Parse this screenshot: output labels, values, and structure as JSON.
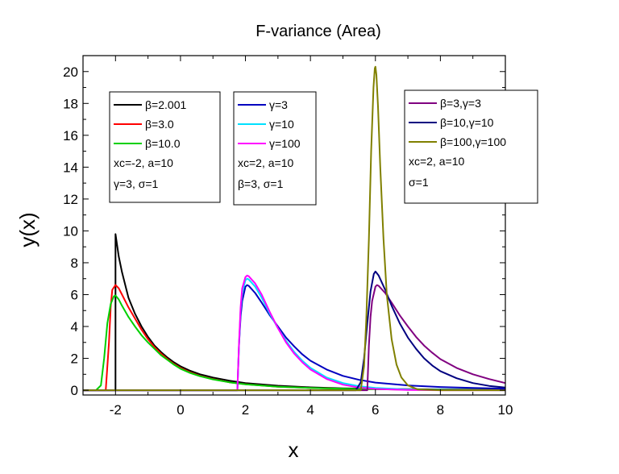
{
  "chart_data": {
    "type": "line",
    "title": "F-variance (Area)",
    "xlabel": "x",
    "ylabel": "y(x)",
    "xlim": [
      -3,
      10
    ],
    "ylim": [
      -0.3,
      21
    ],
    "xticks": [
      "-2",
      "0",
      "2",
      "4",
      "6",
      "8",
      "10"
    ],
    "yticks": [
      "0",
      "2",
      "4",
      "6",
      "8",
      "10",
      "12",
      "14",
      "16",
      "18",
      "20"
    ],
    "series": [
      {
        "name": "β=2.001",
        "color": "#000000",
        "points": [
          [
            -3,
            0
          ],
          [
            -2.05,
            0
          ],
          [
            -2,
            0
          ],
          [
            -2,
            9.8
          ],
          [
            -1.9,
            8.4
          ],
          [
            -1.8,
            7.4
          ],
          [
            -1.6,
            5.8
          ],
          [
            -1.4,
            4.8
          ],
          [
            -1.2,
            4.0
          ],
          [
            -1,
            3.35
          ],
          [
            -0.8,
            2.8
          ],
          [
            -0.6,
            2.4
          ],
          [
            -0.4,
            2.05
          ],
          [
            -0.2,
            1.75
          ],
          [
            0,
            1.5
          ],
          [
            0.3,
            1.22
          ],
          [
            0.6,
            1.0
          ],
          [
            1,
            0.8
          ],
          [
            1.5,
            0.6
          ],
          [
            2,
            0.45
          ],
          [
            3,
            0.28
          ],
          [
            4,
            0.18
          ],
          [
            5,
            0.12
          ],
          [
            6,
            0.09
          ],
          [
            7,
            0.07
          ],
          [
            8,
            0.05
          ],
          [
            9,
            0.04
          ],
          [
            10,
            0.03
          ]
        ]
      },
      {
        "name": "β=3.0",
        "color": "#ff0000",
        "points": [
          [
            -3,
            0
          ],
          [
            -2.3,
            0
          ],
          [
            -2.2,
            3.0
          ],
          [
            -2.15,
            5.2
          ],
          [
            -2.1,
            6.3
          ],
          [
            -2.0,
            6.6
          ],
          [
            -1.9,
            6.4
          ],
          [
            -1.8,
            6.0
          ],
          [
            -1.6,
            5.2
          ],
          [
            -1.4,
            4.5
          ],
          [
            -1.2,
            3.8
          ],
          [
            -1,
            3.2
          ],
          [
            -0.8,
            2.7
          ],
          [
            -0.6,
            2.3
          ],
          [
            -0.4,
            1.95
          ],
          [
            -0.2,
            1.65
          ],
          [
            0,
            1.4
          ],
          [
            0.3,
            1.12
          ],
          [
            0.6,
            0.9
          ],
          [
            1,
            0.7
          ],
          [
            1.5,
            0.5
          ],
          [
            2,
            0.38
          ],
          [
            3,
            0.22
          ],
          [
            4,
            0.14
          ],
          [
            5,
            0.09
          ],
          [
            6,
            0.06
          ],
          [
            7,
            0.04
          ],
          [
            8,
            0.03
          ],
          [
            9,
            0.02
          ],
          [
            10,
            0.02
          ]
        ]
      },
      {
        "name": "β=10.0",
        "color": "#00d000",
        "points": [
          [
            -3,
            0
          ],
          [
            -2.6,
            0
          ],
          [
            -2.45,
            0.3
          ],
          [
            -2.35,
            2.0
          ],
          [
            -2.25,
            4.2
          ],
          [
            -2.15,
            5.4
          ],
          [
            -2.05,
            5.9
          ],
          [
            -2.0,
            5.95
          ],
          [
            -1.9,
            5.7
          ],
          [
            -1.8,
            5.3
          ],
          [
            -1.6,
            4.6
          ],
          [
            -1.4,
            4.0
          ],
          [
            -1.2,
            3.45
          ],
          [
            -1,
            3.0
          ],
          [
            -0.8,
            2.6
          ],
          [
            -0.6,
            2.2
          ],
          [
            -0.4,
            1.9
          ],
          [
            -0.2,
            1.6
          ],
          [
            0,
            1.35
          ],
          [
            0.3,
            1.08
          ],
          [
            0.6,
            0.88
          ],
          [
            1,
            0.68
          ],
          [
            1.5,
            0.5
          ],
          [
            2,
            0.37
          ],
          [
            3,
            0.22
          ],
          [
            4,
            0.14
          ],
          [
            5,
            0.09
          ],
          [
            6,
            0.06
          ],
          [
            7,
            0.04
          ],
          [
            8,
            0.03
          ],
          [
            9,
            0.02
          ],
          [
            10,
            0.02
          ]
        ]
      },
      {
        "name": "γ=3",
        "color": "#0000c0",
        "points": [
          [
            -3,
            0
          ],
          [
            1.75,
            0
          ],
          [
            1.8,
            2.8
          ],
          [
            1.85,
            4.6
          ],
          [
            1.9,
            5.6
          ],
          [
            2.0,
            6.5
          ],
          [
            2.05,
            6.6
          ],
          [
            2.1,
            6.55
          ],
          [
            2.3,
            6.1
          ],
          [
            2.5,
            5.5
          ],
          [
            2.75,
            4.7
          ],
          [
            3,
            4.0
          ],
          [
            3.25,
            3.3
          ],
          [
            3.5,
            2.75
          ],
          [
            3.75,
            2.25
          ],
          [
            4,
            1.85
          ],
          [
            4.5,
            1.3
          ],
          [
            5,
            0.9
          ],
          [
            5.5,
            0.65
          ],
          [
            6,
            0.48
          ],
          [
            7,
            0.3
          ],
          [
            8,
            0.2
          ],
          [
            9,
            0.14
          ],
          [
            10,
            0.1
          ]
        ]
      },
      {
        "name": "γ=10",
        "color": "#00e0ff",
        "points": [
          [
            -3,
            0
          ],
          [
            1.75,
            0
          ],
          [
            1.8,
            2.8
          ],
          [
            1.85,
            5.0
          ],
          [
            1.9,
            6.1
          ],
          [
            2.0,
            6.9
          ],
          [
            2.05,
            7.0
          ],
          [
            2.1,
            6.95
          ],
          [
            2.3,
            6.5
          ],
          [
            2.5,
            5.8
          ],
          [
            2.75,
            4.8
          ],
          [
            3,
            3.9
          ],
          [
            3.25,
            3.1
          ],
          [
            3.5,
            2.4
          ],
          [
            3.75,
            1.85
          ],
          [
            4,
            1.4
          ],
          [
            4.5,
            0.8
          ],
          [
            5,
            0.45
          ],
          [
            5.5,
            0.25
          ],
          [
            6,
            0.14
          ],
          [
            7,
            0.05
          ],
          [
            8,
            0.02
          ],
          [
            9,
            0.01
          ],
          [
            10,
            0
          ]
        ]
      },
      {
        "name": "γ=100",
        "color": "#ff00ff",
        "points": [
          [
            -3,
            0
          ],
          [
            1.75,
            0
          ],
          [
            1.8,
            2.9
          ],
          [
            1.85,
            5.2
          ],
          [
            1.9,
            6.4
          ],
          [
            2.0,
            7.1
          ],
          [
            2.05,
            7.2
          ],
          [
            2.1,
            7.15
          ],
          [
            2.3,
            6.7
          ],
          [
            2.5,
            6.0
          ],
          [
            2.75,
            4.9
          ],
          [
            3,
            3.9
          ],
          [
            3.25,
            3.0
          ],
          [
            3.5,
            2.3
          ],
          [
            3.75,
            1.75
          ],
          [
            4,
            1.3
          ],
          [
            4.5,
            0.7
          ],
          [
            5,
            0.35
          ],
          [
            5.5,
            0.17
          ],
          [
            6,
            0.08
          ],
          [
            7,
            0.02
          ],
          [
            8,
            0
          ],
          [
            9,
            0
          ],
          [
            10,
            0
          ]
        ]
      },
      {
        "name": "β=3,γ=3",
        "color": "#800080",
        "points": [
          [
            -3,
            0
          ],
          [
            5.75,
            0
          ],
          [
            5.8,
            2.8
          ],
          [
            5.85,
            4.6
          ],
          [
            5.9,
            5.6
          ],
          [
            6.0,
            6.5
          ],
          [
            6.05,
            6.6
          ],
          [
            6.1,
            6.55
          ],
          [
            6.3,
            6.1
          ],
          [
            6.5,
            5.5
          ],
          [
            6.75,
            4.7
          ],
          [
            7,
            4.0
          ],
          [
            7.25,
            3.35
          ],
          [
            7.5,
            2.8
          ],
          [
            7.75,
            2.35
          ],
          [
            8,
            1.95
          ],
          [
            8.5,
            1.4
          ],
          [
            9,
            1.0
          ],
          [
            9.5,
            0.7
          ],
          [
            10,
            0.45
          ]
        ]
      },
      {
        "name": "β=10,γ=10",
        "color": "#000080",
        "points": [
          [
            -3,
            0
          ],
          [
            5.4,
            0
          ],
          [
            5.55,
            0.5
          ],
          [
            5.65,
            2.0
          ],
          [
            5.75,
            4.2
          ],
          [
            5.85,
            6.2
          ],
          [
            5.95,
            7.3
          ],
          [
            6.0,
            7.45
          ],
          [
            6.1,
            7.2
          ],
          [
            6.3,
            6.3
          ],
          [
            6.5,
            5.3
          ],
          [
            6.75,
            4.2
          ],
          [
            7,
            3.3
          ],
          [
            7.25,
            2.6
          ],
          [
            7.5,
            2.0
          ],
          [
            7.75,
            1.55
          ],
          [
            8,
            1.2
          ],
          [
            8.5,
            0.75
          ],
          [
            9,
            0.45
          ],
          [
            9.5,
            0.27
          ],
          [
            10,
            0.17
          ]
        ]
      },
      {
        "name": "β=100,γ=100",
        "color": "#808000",
        "points": [
          [
            -3,
            0
          ],
          [
            5.55,
            0
          ],
          [
            5.65,
            1.5
          ],
          [
            5.72,
            4.5
          ],
          [
            5.8,
            9.5
          ],
          [
            5.87,
            15.0
          ],
          [
            5.94,
            19.0
          ],
          [
            5.98,
            20.2
          ],
          [
            6.0,
            20.3
          ],
          [
            6.03,
            19.8
          ],
          [
            6.08,
            17.8
          ],
          [
            6.15,
            14.0
          ],
          [
            6.25,
            9.5
          ],
          [
            6.35,
            6.0
          ],
          [
            6.5,
            3.2
          ],
          [
            6.65,
            1.6
          ],
          [
            6.8,
            0.8
          ],
          [
            7.0,
            0.3
          ],
          [
            7.3,
            0.05
          ],
          [
            8,
            0
          ],
          [
            10,
            0
          ]
        ]
      }
    ],
    "legends": [
      {
        "entries": [
          {
            "label": "β=2.001",
            "color": "#000000"
          },
          {
            "label": "β=3.0",
            "color": "#ff0000"
          },
          {
            "label": "β=10.0",
            "color": "#00d000"
          }
        ],
        "notes": [
          "xc=-2, a=10",
          "γ=3, σ=1"
        ]
      },
      {
        "entries": [
          {
            "label": "γ=3",
            "color": "#0000c0"
          },
          {
            "label": "γ=10",
            "color": "#00e0ff"
          },
          {
            "label": "γ=100",
            "color": "#ff00ff"
          }
        ],
        "notes": [
          "xc=2, a=10",
          "β=3, σ=1"
        ]
      },
      {
        "entries": [
          {
            "label": "β=3,γ=3",
            "color": "#800080"
          },
          {
            "label": "β=10,γ=10",
            "color": "#000080"
          },
          {
            "label": "β=100,γ=100",
            "color": "#808000"
          }
        ],
        "notes": [
          "xc=2, a=10",
          "σ=1"
        ]
      }
    ]
  }
}
